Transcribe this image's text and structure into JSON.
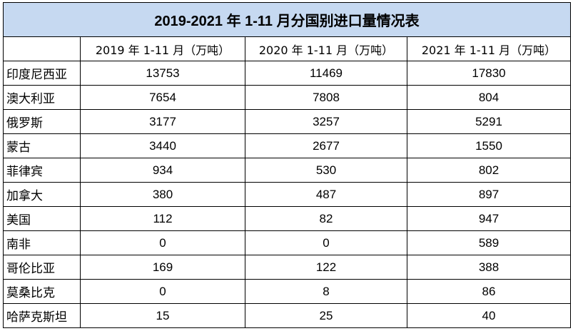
{
  "table": {
    "title": "2019-2021 年 1-11 月分国别进口量情况表",
    "columns": [
      "",
      "2019 年 1-11 月（万吨）",
      "2020 年 1-11 月（万吨）",
      "2021 年 1-11 月（万吨）"
    ],
    "rows": [
      {
        "country": "印度尼西亚",
        "values": [
          "13753",
          "11469",
          "17830"
        ]
      },
      {
        "country": "澳大利亚",
        "values": [
          "7654",
          "7808",
          "804"
        ]
      },
      {
        "country": "俄罗斯",
        "values": [
          "3177",
          "3257",
          "5291"
        ]
      },
      {
        "country": "蒙古",
        "values": [
          "3440",
          "2677",
          "1550"
        ]
      },
      {
        "country": "菲律宾",
        "values": [
          "934",
          "530",
          "802"
        ]
      },
      {
        "country": "加拿大",
        "values": [
          "380",
          "487",
          "897"
        ]
      },
      {
        "country": "美国",
        "values": [
          "112",
          "82",
          "947"
        ]
      },
      {
        "country": "南非",
        "values": [
          "0",
          "0",
          "589"
        ]
      },
      {
        "country": "哥伦比亚",
        "values": [
          "169",
          "122",
          "388"
        ]
      },
      {
        "country": "莫桑比克",
        "values": [
          "0",
          "8",
          "86"
        ]
      },
      {
        "country": "哈萨克斯坦",
        "values": [
          "15",
          "25",
          "40"
        ]
      }
    ]
  }
}
